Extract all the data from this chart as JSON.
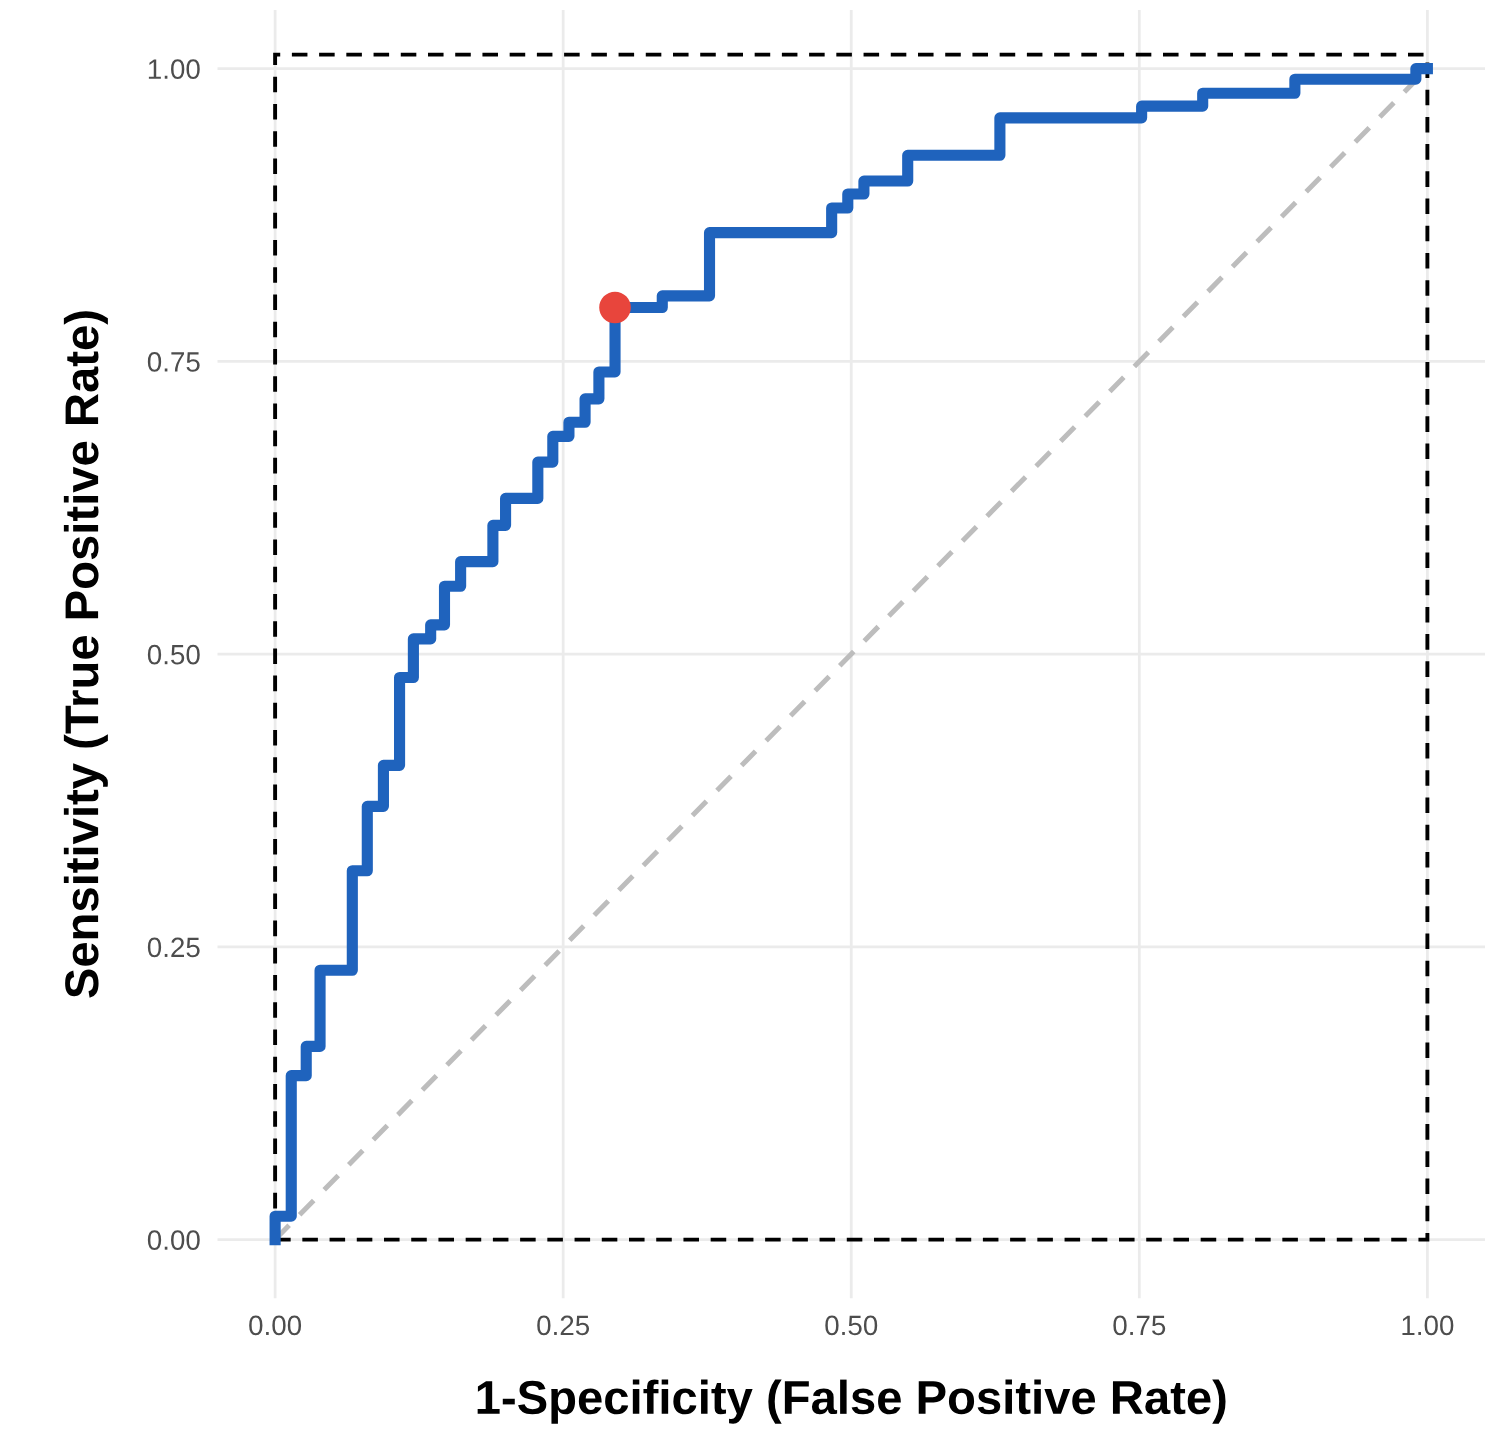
{
  "chart_data": {
    "type": "step",
    "xlabel": "1-Specificity (False Positive Rate)",
    "ylabel": "Sensitivity (True Positive Rate)",
    "xlim": [
      -0.05,
      1.05
    ],
    "ylim": [
      -0.05,
      1.05
    ],
    "xticks": [
      {
        "value": 0,
        "label": "0.00"
      },
      {
        "value": 0.25,
        "label": "0.25"
      },
      {
        "value": 0.5,
        "label": "0.50"
      },
      {
        "value": 0.75,
        "label": "0.75"
      },
      {
        "value": 1,
        "label": "1.00"
      }
    ],
    "yticks": [
      {
        "value": 0,
        "label": "0.00"
      },
      {
        "value": 0.25,
        "label": "0.25"
      },
      {
        "value": 0.5,
        "label": "0.50"
      },
      {
        "value": 0.75,
        "label": "0.75"
      },
      {
        "value": 1,
        "label": "1.00"
      }
    ],
    "grid": true,
    "series": [
      {
        "type": "line",
        "color": "#bdbdbd",
        "line_style": "dashed",
        "x": [
          0,
          1
        ],
        "values": [
          0,
          1
        ]
      },
      {
        "color": "#1f63bd",
        "line_style": "solid",
        "x": [
          0,
          0,
          0.014,
          0.027,
          0.039,
          0.067,
          0.08,
          0.094,
          0.108,
          0.12,
          0.135,
          0.147,
          0.161,
          0.189,
          0.2,
          0.228,
          0.241,
          0.255,
          0.269,
          0.281,
          0.295,
          0.336,
          0.377,
          0.483,
          0.497,
          0.511,
          0.549,
          0.629,
          0.752,
          0.805,
          0.885,
          0.99,
          1.0
        ],
        "values": [
          0,
          0.02,
          0.14,
          0.165,
          0.23,
          0.315,
          0.37,
          0.405,
          0.48,
          0.513,
          0.525,
          0.558,
          0.579,
          0.61,
          0.633,
          0.664,
          0.686,
          0.698,
          0.718,
          0.741,
          0.796,
          0.806,
          0.86,
          0.881,
          0.893,
          0.904,
          0.926,
          0.958,
          0.968,
          0.979,
          0.991,
          1.0,
          1.0
        ]
      },
      {
        "type": "scatter",
        "color": "#e8453c",
        "marker": "circle",
        "x": [
          0.295
        ],
        "values": [
          0.796
        ]
      }
    ]
  }
}
